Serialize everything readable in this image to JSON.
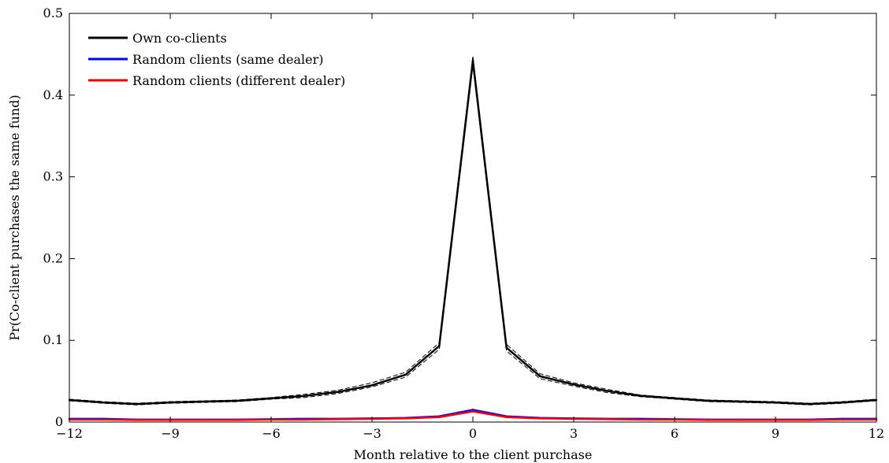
{
  "chart_data": {
    "type": "line",
    "xlabel": "Month relative to the client purchase",
    "ylabel": "Pr(Co-client purchases the same fund)",
    "xlim": [
      -12,
      12
    ],
    "ylim": [
      0,
      0.5
    ],
    "xticks": [
      -12,
      -9,
      -6,
      -3,
      0,
      3,
      6,
      9,
      12
    ],
    "xtick_labels": [
      "−12",
      "−9",
      "−6",
      "−3",
      "0",
      "3",
      "6",
      "9",
      "12"
    ],
    "yticks": [
      0,
      0.1,
      0.2,
      0.3,
      0.4,
      0.5
    ],
    "ytick_labels": [
      "0",
      "0.1",
      "0.2",
      "0.3",
      "0.4",
      "0.5"
    ],
    "grid": false,
    "legend_position": "top-left",
    "x": [
      -12,
      -11,
      -10,
      -9,
      -8,
      -7,
      -6,
      -5,
      -4,
      -3,
      -2,
      -1,
      0,
      1,
      2,
      3,
      4,
      5,
      6,
      7,
      8,
      9,
      10,
      11,
      12
    ],
    "series": [
      {
        "name": "Own co-clients",
        "color": "#000000",
        "values": [
          0.027,
          0.024,
          0.022,
          0.024,
          0.025,
          0.026,
          0.029,
          0.032,
          0.037,
          0.045,
          0.058,
          0.093,
          0.442,
          0.091,
          0.056,
          0.046,
          0.038,
          0.032,
          0.029,
          0.026,
          0.025,
          0.024,
          0.022,
          0.024,
          0.027
        ],
        "band_lower": [
          0.026,
          0.023,
          0.021,
          0.023,
          0.024,
          0.025,
          0.028,
          0.03,
          0.035,
          0.043,
          0.055,
          0.089,
          0.436,
          0.087,
          0.053,
          0.044,
          0.036,
          0.031,
          0.028,
          0.025,
          0.024,
          0.023,
          0.021,
          0.023,
          0.026
        ],
        "band_upper": [
          0.028,
          0.025,
          0.023,
          0.025,
          0.026,
          0.027,
          0.03,
          0.034,
          0.039,
          0.048,
          0.061,
          0.097,
          0.448,
          0.095,
          0.059,
          0.048,
          0.04,
          0.033,
          0.03,
          0.027,
          0.026,
          0.025,
          0.023,
          0.025,
          0.028
        ]
      },
      {
        "name": "Random clients (same dealer)",
        "color": "#0000ff",
        "values": [
          0.004,
          0.004,
          0.003,
          0.003,
          0.003,
          0.003,
          0.0035,
          0.004,
          0.004,
          0.0045,
          0.005,
          0.007,
          0.015,
          0.007,
          0.005,
          0.0045,
          0.004,
          0.004,
          0.0035,
          0.003,
          0.003,
          0.003,
          0.003,
          0.004,
          0.004
        ]
      },
      {
        "name": "Random clients (different dealer)",
        "color": "#ff0000",
        "values": [
          0.003,
          0.003,
          0.0025,
          0.0025,
          0.0025,
          0.0025,
          0.003,
          0.003,
          0.0035,
          0.004,
          0.0045,
          0.006,
          0.013,
          0.006,
          0.0045,
          0.004,
          0.0035,
          0.003,
          0.003,
          0.0025,
          0.0025,
          0.0025,
          0.0025,
          0.003,
          0.003
        ]
      }
    ]
  }
}
